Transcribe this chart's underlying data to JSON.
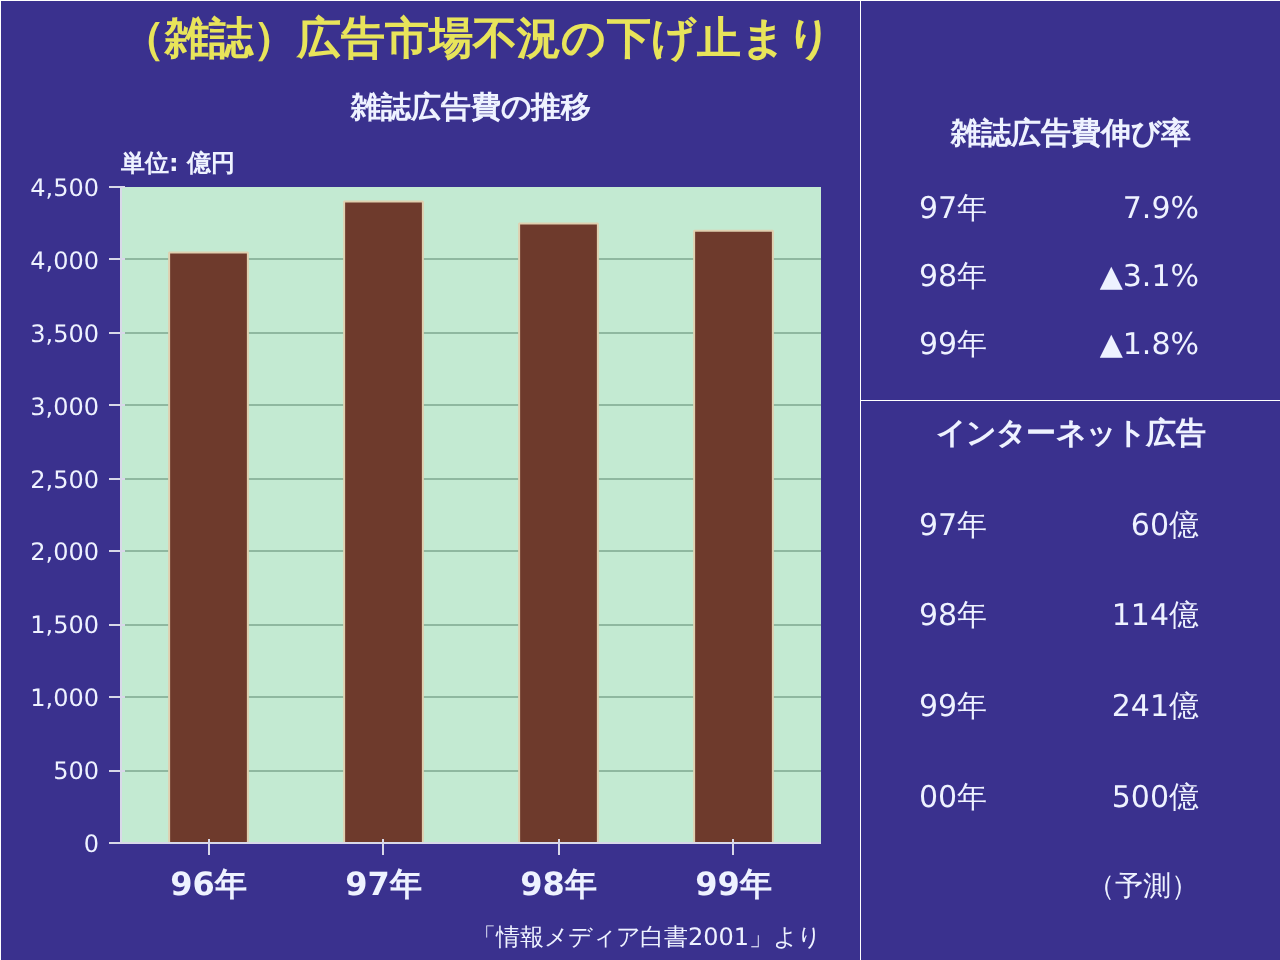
{
  "chart_data": [
    {
      "type": "bar",
      "title": "（雑誌）広告市場不況の下げ止まり",
      "subtitle": "雑誌広告費の推移",
      "ylabel": "単位: 億円",
      "categories": [
        "96年",
        "97年",
        "98年",
        "99年"
      ],
      "values": [
        4050,
        4400,
        4250,
        4200
      ],
      "color": "#6e3a2c",
      "ylim": [
        0,
        4500
      ],
      "yticks": [
        0,
        500,
        {
          "value": 1000,
          "label": "1,000"
        },
        {
          "value": 1500,
          "label": "1,500"
        },
        {
          "value": 2000,
          "label": "2,000"
        },
        {
          "value": 2500,
          "label": "2,500"
        },
        {
          "value": 3000,
          "label": "3,000"
        },
        {
          "value": 3500,
          "label": "3,500"
        },
        {
          "value": 4000,
          "label": "4,000"
        },
        {
          "value": 4500,
          "label": "4,500"
        }
      ],
      "grid": "y",
      "annotations": [
        "「情報メディア白書2001」より"
      ]
    },
    {
      "type": "other",
      "title": "雑誌広告費伸び率",
      "categories": [
        "97年",
        "98年",
        "99年"
      ],
      "value_labels": [
        "7.9%",
        "▲3.1%",
        "▲1.8%"
      ]
    },
    {
      "type": "other",
      "title": "インターネット広告",
      "categories": [
        "97年",
        "98年",
        "99年",
        "00年"
      ],
      "value_labels": [
        "60億",
        "114億",
        "241億",
        "500億"
      ],
      "annotations": [
        "（予測）"
      ]
    }
  ]
}
